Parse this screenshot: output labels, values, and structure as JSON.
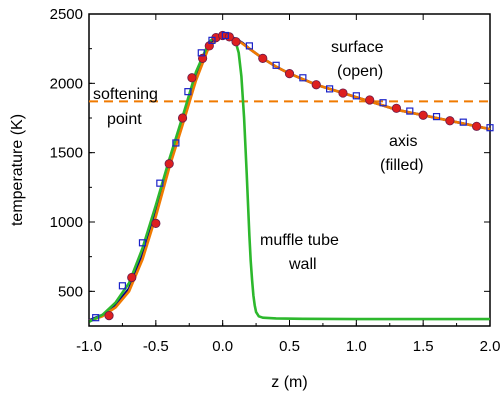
{
  "chart_data": {
    "type": "line",
    "xlabel": "z (m)",
    "ylabel": "temperature (K)",
    "xlim": [
      -1.0,
      2.0
    ],
    "ylim": [
      250,
      2500
    ],
    "x_ticks": [
      -1.0,
      -0.5,
      0.0,
      0.5,
      1.0,
      1.5,
      2.0
    ],
    "x_tick_labels": [
      "-1.0",
      "-0.5",
      "0.0",
      "0.5",
      "1.0",
      "1.5",
      "2.0"
    ],
    "y_ticks": [
      500,
      1000,
      1500,
      2000,
      2500
    ],
    "y_tick_labels": [
      "500",
      "1000",
      "1500",
      "2000",
      "2500"
    ],
    "softening_point": 1870,
    "annotations": {
      "softening": [
        "softening",
        "point"
      ],
      "surface": [
        "surface",
        "(open)"
      ],
      "axis": [
        "axis",
        "(filled)"
      ],
      "muffle": [
        "muffle tube",
        "wall"
      ]
    },
    "series": [
      {
        "color": "#00008b",
        "x": [
          -1.0,
          -0.9,
          -0.8,
          -0.7,
          -0.6,
          -0.5,
          -0.4,
          -0.3,
          -0.2,
          -0.15,
          -0.1,
          -0.05,
          0.0,
          0.05,
          0.1,
          0.15,
          0.2,
          0.3,
          0.4,
          0.5,
          0.6,
          0.7,
          0.8,
          0.9,
          1.0,
          1.1,
          1.2,
          1.3,
          1.4,
          1.5,
          1.6,
          1.7,
          1.8,
          1.9,
          2.0
        ],
        "y": [
          290,
          330,
          400,
          520,
          760,
          1080,
          1420,
          1720,
          2030,
          2170,
          2280,
          2330,
          2345,
          2340,
          2320,
          2290,
          2250,
          2180,
          2120,
          2070,
          2030,
          1990,
          1960,
          1930,
          1900,
          1870,
          1840,
          1810,
          1790,
          1770,
          1750,
          1730,
          1710,
          1690,
          1670
        ]
      },
      {
        "color": "#f07a00",
        "x": [
          -1.0,
          -0.9,
          -0.8,
          -0.7,
          -0.6,
          -0.5,
          -0.4,
          -0.3,
          -0.2,
          -0.1,
          0.0,
          0.1,
          0.2,
          0.3,
          0.4,
          0.5,
          0.6,
          0.7,
          0.8,
          0.9,
          1.0,
          1.1,
          1.2,
          1.3,
          1.4,
          1.5,
          1.6,
          1.7,
          1.8,
          1.9,
          2.0
        ],
        "y": [
          285,
          320,
          385,
          500,
          730,
          1040,
          1390,
          1700,
          2020,
          2270,
          2340,
          2320,
          2250,
          2180,
          2120,
          2070,
          2030,
          1990,
          1960,
          1930,
          1900,
          1870,
          1840,
          1810,
          1790,
          1770,
          1750,
          1730,
          1710,
          1690,
          1670
        ]
      },
      {
        "color": "#2db82d",
        "x": [
          -1.0,
          -0.9,
          -0.8,
          -0.7,
          -0.6,
          -0.5,
          -0.4,
          -0.3,
          -0.2,
          -0.1,
          -0.05,
          0.0,
          0.05,
          0.1,
          0.12,
          0.14,
          0.16,
          0.18,
          0.2,
          0.21,
          0.22,
          0.23,
          0.24,
          0.25,
          0.27,
          0.3,
          0.4,
          0.6,
          1.0,
          1.5,
          2.0
        ],
        "y": [
          280,
          330,
          420,
          560,
          810,
          1120,
          1450,
          1760,
          2080,
          2300,
          2340,
          2350,
          2340,
          2290,
          2220,
          2050,
          1750,
          1350,
          900,
          720,
          580,
          470,
          400,
          350,
          320,
          310,
          305,
          302,
          300,
          300,
          300
        ]
      }
    ],
    "markers_filled": {
      "color": "#dd1f1f",
      "x": [
        -0.85,
        -0.68,
        -0.5,
        -0.4,
        -0.3,
        -0.23,
        -0.15,
        -0.1,
        -0.05,
        0.0,
        0.05,
        0.1,
        0.3,
        0.5,
        0.7,
        0.9,
        1.1,
        1.3,
        1.5,
        1.7,
        1.9
      ],
      "y": [
        325,
        600,
        990,
        1420,
        1750,
        2040,
        2180,
        2270,
        2330,
        2345,
        2335,
        2300,
        2180,
        2070,
        1990,
        1930,
        1880,
        1820,
        1770,
        1730,
        1690
      ]
    },
    "markers_open": {
      "color": "#1a22c8",
      "x": [
        -0.95,
        -0.75,
        -0.6,
        -0.47,
        -0.35,
        -0.26,
        -0.16,
        -0.08,
        0.02,
        0.2,
        0.4,
        0.6,
        0.8,
        1.0,
        1.2,
        1.4,
        1.6,
        1.8,
        2.0
      ],
      "y": [
        310,
        540,
        850,
        1280,
        1570,
        1940,
        2220,
        2310,
        2345,
        2270,
        2130,
        2040,
        1960,
        1910,
        1860,
        1800,
        1760,
        1720,
        1680
      ]
    }
  }
}
